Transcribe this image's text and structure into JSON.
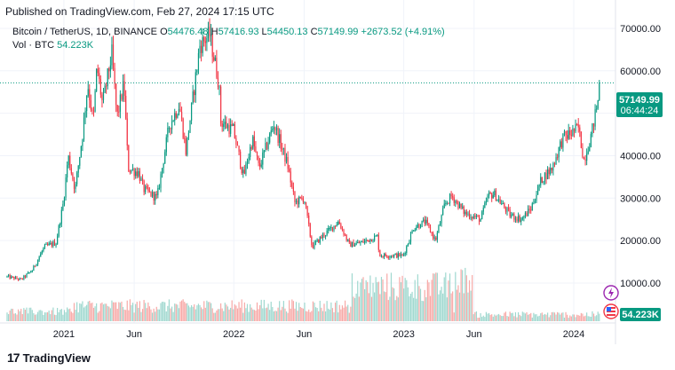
{
  "header": {
    "published": "Published on TradingView.com, Feb 27, 2024 17:15 UTC"
  },
  "legend": {
    "symbol": "Bitcoin / TetherUS, 1D, BINANCE",
    "open_label": "O",
    "open": "54476.48",
    "high_label": "H",
    "high": "57416.93",
    "low_label": "L",
    "low": "54450.13",
    "close_label": "C",
    "close": "57149.99",
    "change": "+2673.52 (+4.91%)"
  },
  "vol_legend": {
    "label": "Vol · BTC",
    "value": "54.223K"
  },
  "last_price": {
    "price": "57149.99",
    "countdown": "06:44:24"
  },
  "vol_badge": "54.223K",
  "footer": {
    "brand": "TradingView"
  },
  "colors": {
    "up": "#089981",
    "down": "#f23645",
    "vol_up": "#9fd8cf",
    "vol_down": "#f7a9a7",
    "grid": "#f0f3fa",
    "text": "#131722"
  },
  "chart_data": {
    "type": "candlestick",
    "title": "Bitcoin / TetherUS, 1D, BINANCE",
    "y_ticks": [
      "70000.00",
      "60000.00",
      "50000.00",
      "40000.00",
      "30000.00",
      "20000.00",
      "10000.00"
    ],
    "y_tick_values": [
      70000,
      60000,
      50000,
      40000,
      30000,
      20000,
      10000
    ],
    "ylim": [
      1000,
      72500
    ],
    "x_ticks": [
      "2021",
      "Jun",
      "2022",
      "Jun",
      "2023",
      "Jun",
      "2024"
    ],
    "x_tick_dates": [
      "2021-01-01",
      "2021-06-01",
      "2022-01-01",
      "2022-06-01",
      "2023-01-01",
      "2023-06-01",
      "2024-01-01"
    ],
    "x_range": [
      "2020-09-01",
      "2024-03-25"
    ],
    "price_path": [
      [
        "2020-09-01",
        11500
      ],
      [
        "2020-10-01",
        10800
      ],
      [
        "2020-10-25",
        13000
      ],
      [
        "2020-11-20",
        18500
      ],
      [
        "2020-12-15",
        19500
      ],
      [
        "2020-12-31",
        29000
      ],
      [
        "2021-01-10",
        40000
      ],
      [
        "2021-01-25",
        32000
      ],
      [
        "2021-02-10",
        45000
      ],
      [
        "2021-02-21",
        57000
      ],
      [
        "2021-03-05",
        48000
      ],
      [
        "2021-03-13",
        61000
      ],
      [
        "2021-03-25",
        52000
      ],
      [
        "2021-04-14",
        64000
      ],
      [
        "2021-04-25",
        49000
      ],
      [
        "2021-05-10",
        57000
      ],
      [
        "2021-05-19",
        37000
      ],
      [
        "2021-06-10",
        36000
      ],
      [
        "2021-06-22",
        32000
      ],
      [
        "2021-07-20",
        30000
      ],
      [
        "2021-08-15",
        47000
      ],
      [
        "2021-09-06",
        52000
      ],
      [
        "2021-09-20",
        41000
      ],
      [
        "2021-10-20",
        66000
      ],
      [
        "2021-11-10",
        68500
      ],
      [
        "2021-11-30",
        57000
      ],
      [
        "2021-12-04",
        48000
      ],
      [
        "2021-12-31",
        46000
      ],
      [
        "2022-01-22",
        35000
      ],
      [
        "2022-02-10",
        44000
      ],
      [
        "2022-02-24",
        37000
      ],
      [
        "2022-03-28",
        47500
      ],
      [
        "2022-04-26",
        38000
      ],
      [
        "2022-05-12",
        29000
      ],
      [
        "2022-06-01",
        30000
      ],
      [
        "2022-06-18",
        18500
      ],
      [
        "2022-07-10",
        21000
      ],
      [
        "2022-08-14",
        24500
      ],
      [
        "2022-09-06",
        19000
      ],
      [
        "2022-10-01",
        19500
      ],
      [
        "2022-11-05",
        21000
      ],
      [
        "2022-11-10",
        16500
      ],
      [
        "2022-12-31",
        16500
      ],
      [
        "2023-01-22",
        23000
      ],
      [
        "2023-02-16",
        24500
      ],
      [
        "2023-03-10",
        20000
      ],
      [
        "2023-03-30",
        28500
      ],
      [
        "2023-04-14",
        30500
      ],
      [
        "2023-05-12",
        26500
      ],
      [
        "2023-06-15",
        25000
      ],
      [
        "2023-07-01",
        30500
      ],
      [
        "2023-07-14",
        31000
      ],
      [
        "2023-08-17",
        26000
      ],
      [
        "2023-09-11",
        25000
      ],
      [
        "2023-10-01",
        27500
      ],
      [
        "2023-10-24",
        34500
      ],
      [
        "2023-11-15",
        37000
      ],
      [
        "2023-12-08",
        44000
      ],
      [
        "2024-01-11",
        46500
      ],
      [
        "2024-01-23",
        39000
      ],
      [
        "2024-02-08",
        45000
      ],
      [
        "2024-02-20",
        52000
      ],
      [
        "2024-02-26",
        54500
      ],
      [
        "2024-02-27",
        57150
      ]
    ]
  }
}
